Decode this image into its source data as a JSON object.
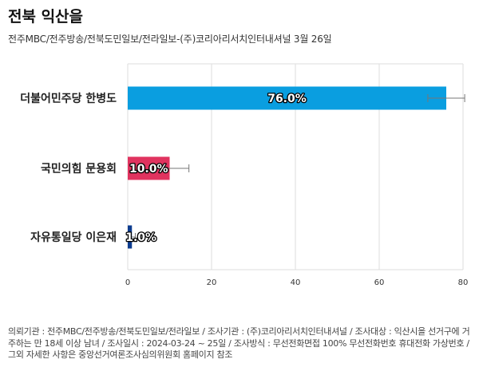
{
  "header": {
    "title": "전북 익산을",
    "subtitle": "전주MBC/전주방송/전북도민일보/전라일보-(주)코리아리서치인터내셔널 3월 26일"
  },
  "footer": {
    "note": "의뢰기관 : 전주MBC/전주방송/전북도민일보/전라일보 / 조사기관 : (주)코리아리서치인터내셔널 / 조사대상 : 익산시을 선거구에 거주하는 만 18세 이상 남녀 / 조사일시 : 2024-03-24 ~ 25일 / 조사방식 : 무선전화면접 100% 무선전화번호 휴대전화 가상번호 / 그외 자세한 사항은 중앙선거여론조사심의위원회 홈페이지 참조"
  },
  "chart_data": {
    "type": "bar",
    "orientation": "horizontal",
    "categories": [
      "더불어민주당 한병도",
      "국민의힘 문용회",
      "자유통일당 이은재"
    ],
    "values": [
      76.0,
      10.0,
      1.0
    ],
    "value_labels": [
      "76.0%",
      "10.0%",
      "1.0%"
    ],
    "error_low": [
      71.6,
      6.6,
      0.2
    ],
    "error_high": [
      80.4,
      14.6,
      1.8
    ],
    "colors": [
      "#0a9ee0",
      "#e0335f",
      "#0d3c8f"
    ],
    "xlim": [
      0,
      80
    ],
    "xticks": [
      "0",
      "20",
      "40",
      "60",
      "80"
    ],
    "grid": true,
    "legend": "none"
  }
}
